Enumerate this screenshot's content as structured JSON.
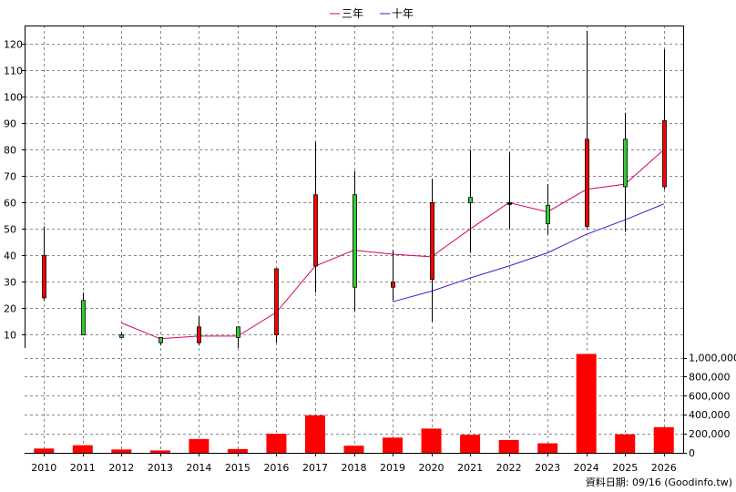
{
  "chart_data": {
    "type": "candlestick",
    "legend": {
      "position": "top-center",
      "items": [
        {
          "label": "三年",
          "color": "#d4006a"
        },
        {
          "label": "十年",
          "color": "#4b16c9"
        }
      ]
    },
    "x": [
      "2010",
      "2011",
      "2012",
      "2013",
      "2014",
      "2015",
      "2016",
      "2017",
      "2018",
      "2019",
      "2020",
      "2021",
      "2022",
      "2023",
      "2024",
      "2025",
      "2026"
    ],
    "price_axis": {
      "ylim": [
        5,
        127
      ],
      "ticks": [
        10,
        20,
        30,
        40,
        50,
        60,
        70,
        80,
        90,
        100,
        110,
        120
      ],
      "side": "left"
    },
    "volume_axis": {
      "ylim": [
        0,
        1140000
      ],
      "ticks": [
        0,
        200000,
        400000,
        600000,
        800000,
        1000000
      ],
      "tick_labels": [
        "0",
        "200,000",
        "400,000",
        "600,000",
        "800,000",
        "1,000,000"
      ],
      "side": "right"
    },
    "candles": [
      {
        "open": 24,
        "close": 40,
        "high": 51,
        "low": 23
      },
      {
        "open": 23,
        "close": 10,
        "high": 26,
        "low": 10
      },
      {
        "open": 10,
        "close": 9,
        "high": 11,
        "low": 9
      },
      {
        "open": 9,
        "close": 7,
        "high": 9,
        "low": 6
      },
      {
        "open": 7,
        "close": 13,
        "high": 17,
        "low": 6
      },
      {
        "open": 13,
        "close": 9,
        "high": 13,
        "low": 5
      },
      {
        "open": 10,
        "close": 35,
        "high": 35,
        "low": 7
      },
      {
        "open": 36,
        "close": 63,
        "high": 83,
        "low": 26
      },
      {
        "open": 63,
        "close": 28,
        "high": 72,
        "low": 19
      },
      {
        "open": 28,
        "close": 30,
        "high": 42,
        "low": 23
      },
      {
        "open": 31,
        "close": 60,
        "high": 69,
        "low": 15
      },
      {
        "open": 62,
        "close": 60,
        "high": 80,
        "low": 41
      },
      {
        "open": 60,
        "close": 60,
        "high": 79,
        "low": 50
      },
      {
        "open": 59,
        "close": 52,
        "high": 67,
        "low": 48
      },
      {
        "open": 51,
        "close": 84,
        "high": 125,
        "low": 50
      },
      {
        "open": 84,
        "close": 66,
        "high": 94,
        "low": 49
      },
      {
        "open": 66,
        "close": 91,
        "high": 118,
        "low": 65
      }
    ],
    "series": [
      {
        "name": "三年",
        "color": "#d4006a",
        "values": [
          null,
          null,
          14.5,
          8.5,
          9.5,
          9.5,
          18.5,
          36,
          42,
          40.5,
          39.5,
          50,
          60,
          56.5,
          65,
          67,
          80
        ]
      },
      {
        "name": "十年",
        "color": "#4b16c9",
        "values": [
          null,
          null,
          null,
          null,
          null,
          null,
          null,
          null,
          null,
          22.5,
          26.5,
          31.5,
          36,
          41,
          48,
          53.5,
          59.5
        ]
      }
    ],
    "volume": [
      45000,
      80000,
      35000,
      25000,
      145000,
      40000,
      200000,
      395000,
      75000,
      160000,
      255000,
      190000,
      135000,
      100000,
      1040000,
      195000,
      270000
    ],
    "volume_color": "#ff0000",
    "up_color": "#ff0000",
    "down_color": "#33cc33",
    "grid": true
  },
  "footer": {
    "text": "資料日期: 09/16  (Goodinfo.tw)"
  }
}
